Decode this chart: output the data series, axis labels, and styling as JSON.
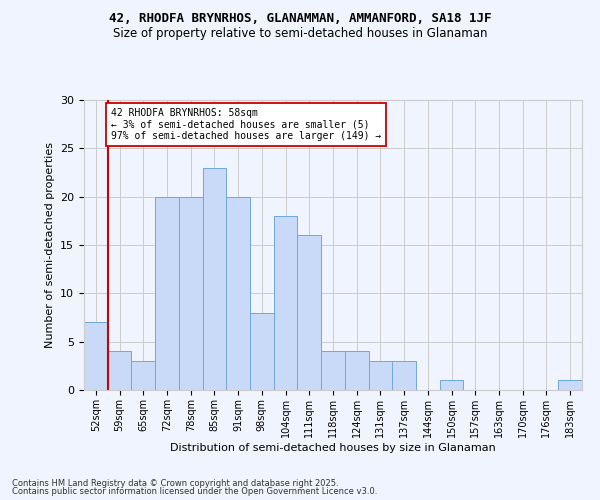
{
  "title1": "42, RHODFA BRYNRHOS, GLANAMMAN, AMMANFORD, SA18 1JF",
  "title2": "Size of property relative to semi-detached houses in Glanaman",
  "xlabel": "Distribution of semi-detached houses by size in Glanaman",
  "ylabel": "Number of semi-detached properties",
  "categories": [
    "52sqm",
    "59sqm",
    "65sqm",
    "72sqm",
    "78sqm",
    "85sqm",
    "91sqm",
    "98sqm",
    "104sqm",
    "111sqm",
    "118sqm",
    "124sqm",
    "131sqm",
    "137sqm",
    "144sqm",
    "150sqm",
    "157sqm",
    "163sqm",
    "170sqm",
    "176sqm",
    "183sqm"
  ],
  "values": [
    7,
    4,
    3,
    20,
    20,
    23,
    20,
    8,
    18,
    16,
    4,
    4,
    3,
    3,
    0,
    1,
    0,
    0,
    0,
    0,
    1
  ],
  "bar_color": "#c9daf8",
  "bar_edge_color": "#6fa8dc",
  "annotation_text_line1": "42 RHODFA BRYNRHOS: 58sqm",
  "annotation_text_line2": "← 3% of semi-detached houses are smaller (5)",
  "annotation_text_line3": "97% of semi-detached houses are larger (149) →",
  "vline_color": "#cc0000",
  "annotation_box_color": "#ffffff",
  "annotation_box_edge_color": "#cc0000",
  "ylim": [
    0,
    30
  ],
  "yticks": [
    0,
    5,
    10,
    15,
    20,
    25,
    30
  ],
  "footer_line1": "Contains HM Land Registry data © Crown copyright and database right 2025.",
  "footer_line2": "Contains public sector information licensed under the Open Government Licence v3.0.",
  "bg_color": "#f0f4ff",
  "grid_color": "#cccccc"
}
